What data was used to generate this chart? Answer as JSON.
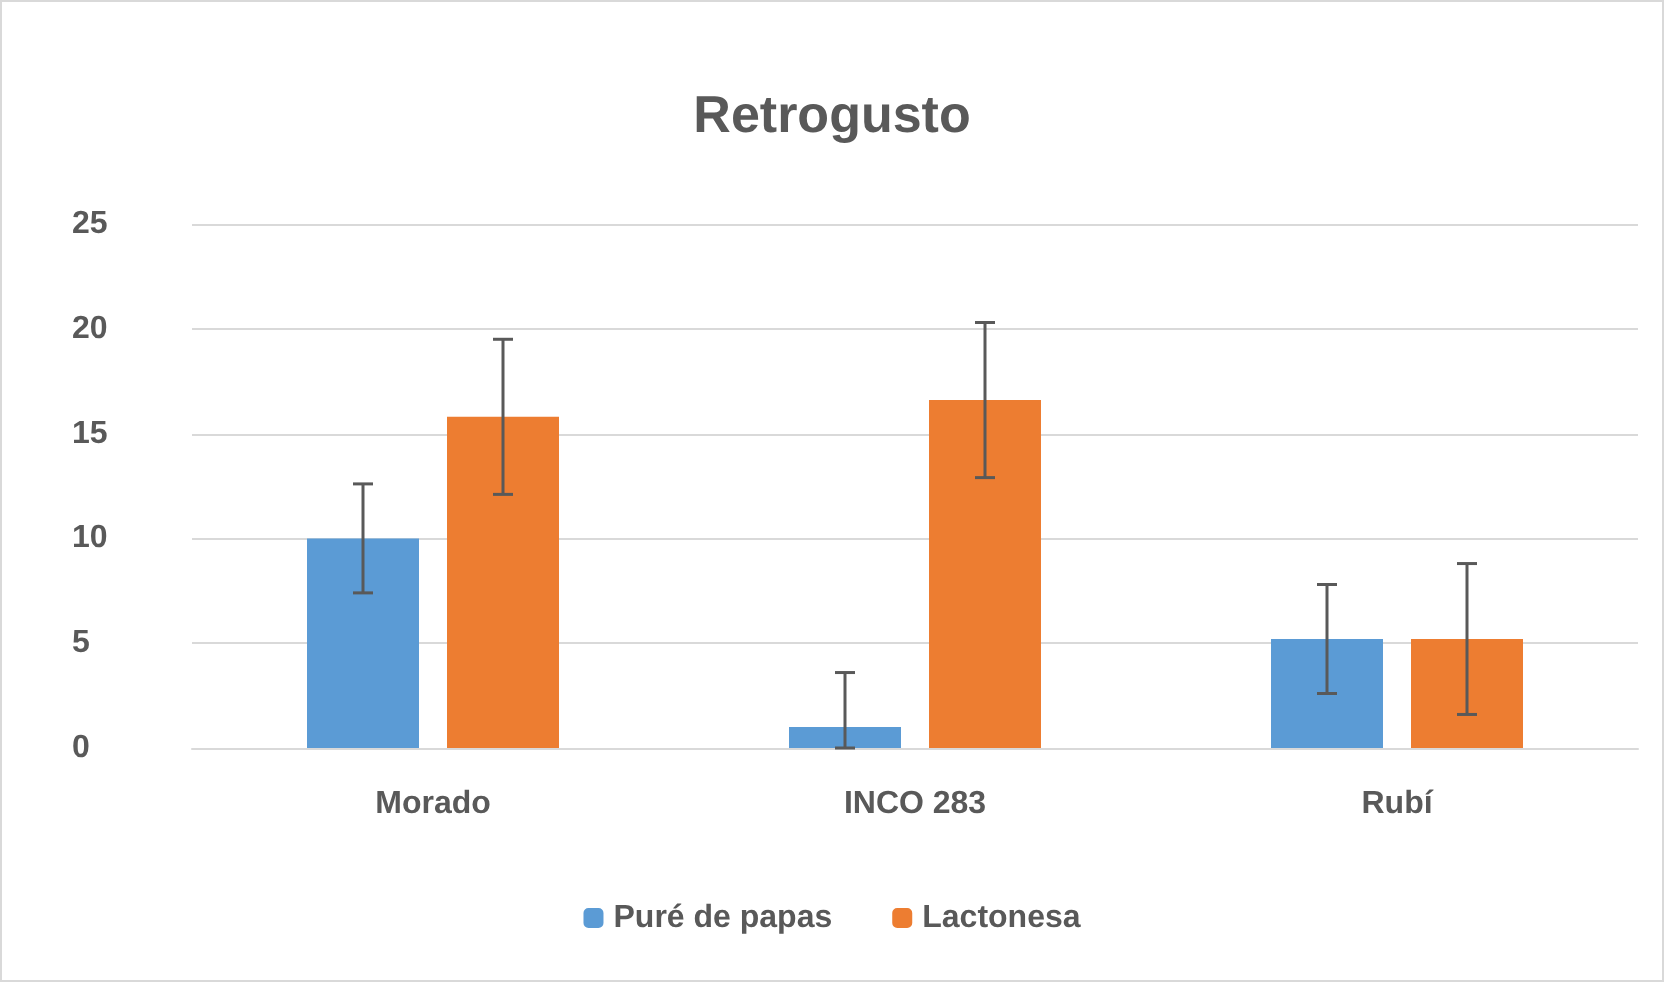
{
  "chart_data": {
    "type": "bar",
    "title": "Retrogusto",
    "categories": [
      "Morado",
      "INCO 283",
      "Rubí"
    ],
    "series": [
      {
        "name": "Puré de papas",
        "color": "#5b9bd5",
        "values": [
          10,
          1,
          5.2
        ],
        "errors": [
          2.6,
          [
            0,
            3.6
          ],
          2.6
        ]
      },
      {
        "name": "Lactonesa",
        "color": "#ed7d31",
        "values": [
          15.8,
          16.6,
          5.2
        ],
        "errors": [
          3.7,
          3.7,
          3.6
        ]
      }
    ],
    "ylim": [
      0,
      25
    ],
    "yticks": [
      0,
      5,
      10,
      15,
      20,
      25
    ],
    "grid": "y",
    "legend": "bottom"
  }
}
